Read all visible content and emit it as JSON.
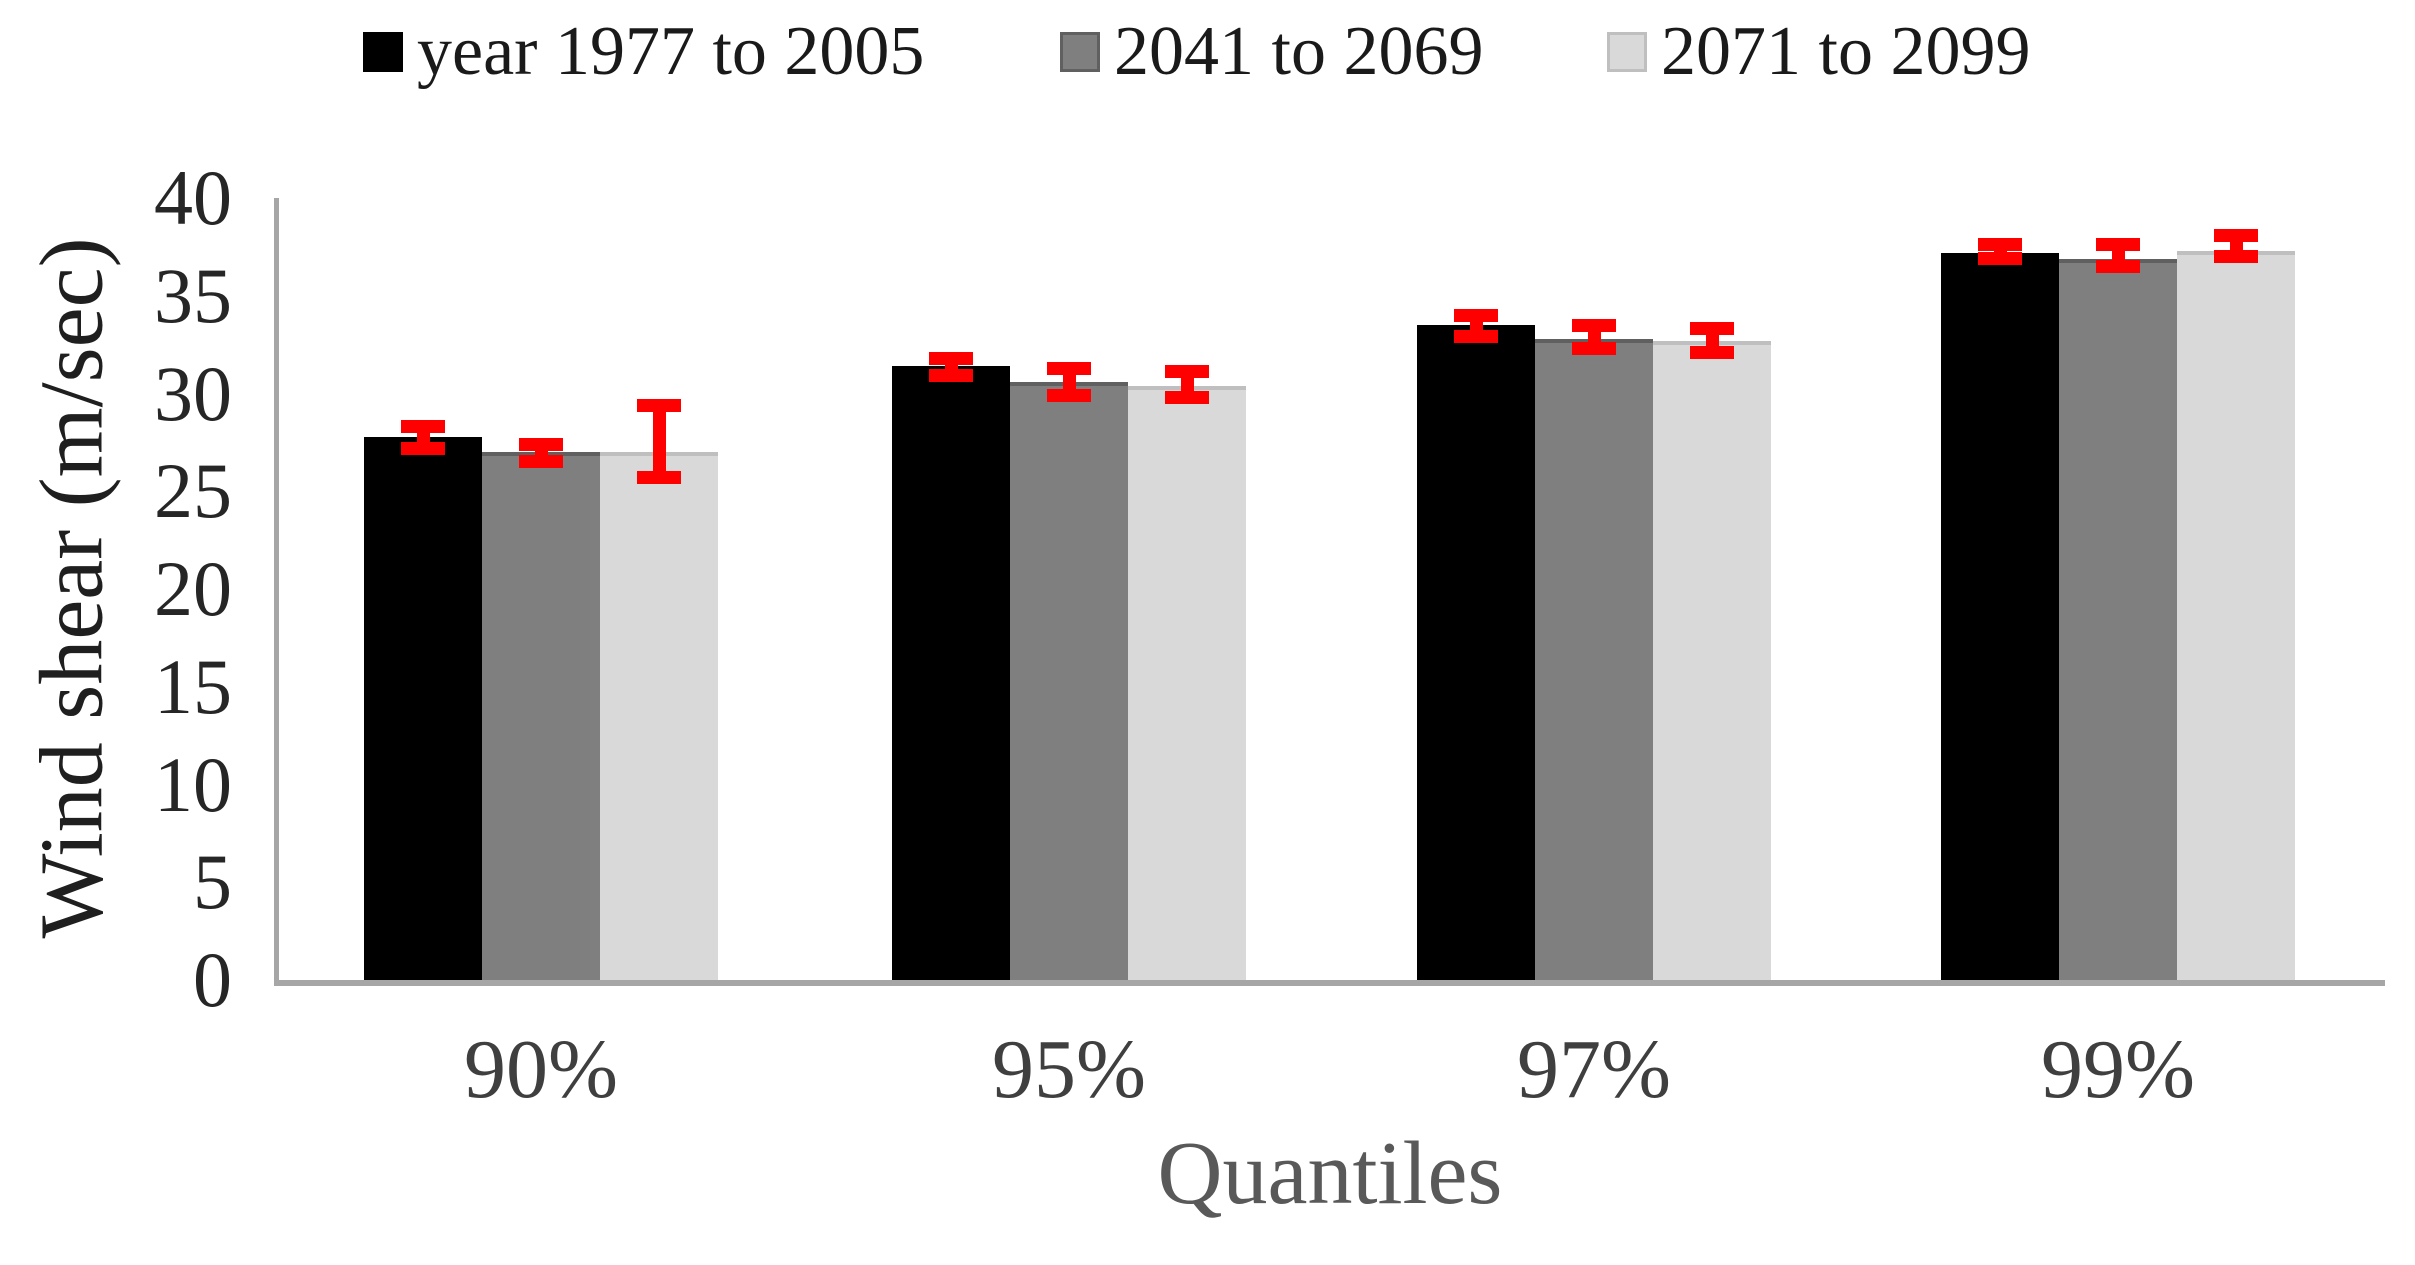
{
  "page": {
    "background": "#ffffff"
  },
  "chart_data": {
    "type": "bar",
    "title": "",
    "categories": [
      "90%",
      "95%",
      "97%",
      "99%"
    ],
    "series": [
      {
        "name": "year 1977 to 2005",
        "color": "#000000",
        "edge_color": "#000000",
        "values": [
          27.8,
          31.4,
          33.5,
          37.2
        ],
        "error_low": [
          27.2,
          30.9,
          32.9,
          36.9
        ],
        "error_high": [
          28.3,
          31.8,
          34.0,
          37.6
        ]
      },
      {
        "name": "2041 to 2069",
        "color": "#7f7f7f",
        "edge_color": "#606060",
        "values": [
          27.0,
          30.6,
          32.8,
          36.9
        ],
        "error_low": [
          26.5,
          29.9,
          32.3,
          36.5
        ],
        "error_high": [
          27.4,
          31.3,
          33.5,
          37.6
        ]
      },
      {
        "name": "2071 to 2099",
        "color": "#d9d9d9",
        "edge_color": "#bfbfbf",
        "values": [
          27.0,
          30.4,
          32.7,
          37.3
        ],
        "error_low": [
          25.7,
          29.8,
          32.1,
          37.0
        ],
        "error_high": [
          29.4,
          31.1,
          33.3,
          38.1
        ]
      }
    ],
    "xlabel": "Quantiles",
    "ylabel": "Wind shear (m/sec)",
    "ylim": [
      0,
      40
    ],
    "yticks": [
      0,
      5,
      10,
      15,
      20,
      25,
      30,
      35,
      40
    ],
    "error_bar_color": "#ff0000",
    "axis_line_color": "#a6a6a6",
    "grid": false,
    "legend_position": "top"
  }
}
